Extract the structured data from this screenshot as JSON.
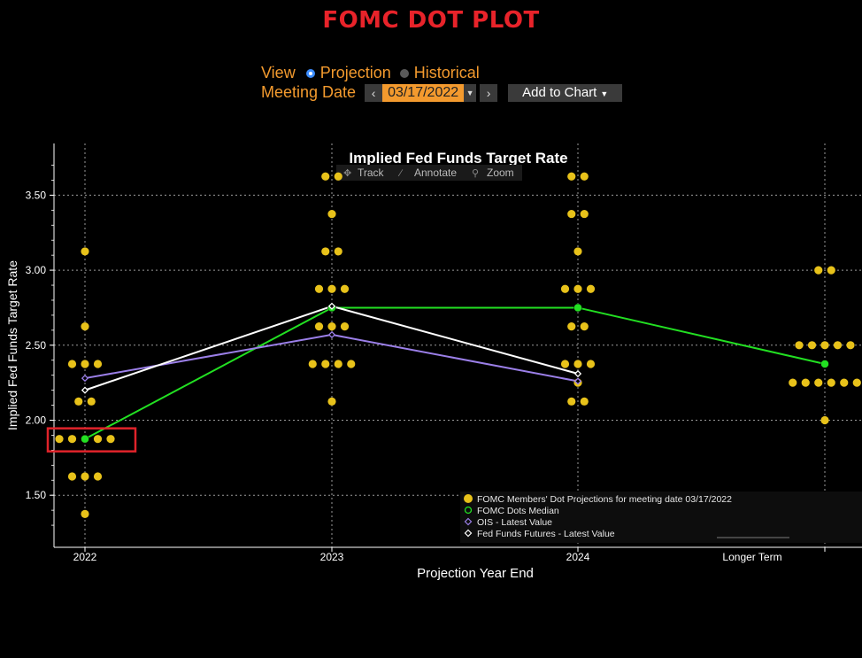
{
  "page_title": "FOMC DOT PLOT",
  "controls": {
    "view_label": "View",
    "view_options": [
      "Projection",
      "Historical"
    ],
    "view_selected": "Projection",
    "meeting_date_label": "Meeting Date",
    "meeting_date_value": "03/17/2022",
    "add_to_chart_label": "Add to Chart"
  },
  "toolbar": {
    "track": "Track",
    "annotate": "Annotate",
    "zoom": "Zoom"
  },
  "colors": {
    "dots": "#e8c21a",
    "median": "#22e022",
    "ois": "#9b7fe8",
    "futures": "#ffffff",
    "highlight": "#e0232a",
    "title": "#e8232a",
    "controls": "#f39a2e"
  },
  "chart_data": {
    "type": "scatter",
    "title": "Implied Fed Funds Target Rate",
    "xlabel": "Projection Year End",
    "ylabel": "Implied Fed Funds Target Rate",
    "categories": [
      "2022",
      "2023",
      "2024",
      "Longer Term"
    ],
    "ylim": [
      1.2,
      3.8
    ],
    "yticks": [
      "1.50",
      "2.00",
      "2.50",
      "3.00",
      "3.50"
    ],
    "grid": true,
    "legend_position": "bottom-right",
    "dot_projections": {
      "name": "FOMC Members' Dot Projections for meeting date 03/17/2022",
      "columns": [
        {
          "category": "2022",
          "levels": [
            {
              "rate": 3.125,
              "count": 1
            },
            {
              "rate": 2.625,
              "count": 1
            },
            {
              "rate": 2.375,
              "count": 3
            },
            {
              "rate": 2.125,
              "count": 2
            },
            {
              "rate": 1.875,
              "count": 5
            },
            {
              "rate": 1.625,
              "count": 3
            },
            {
              "rate": 1.375,
              "count": 1
            }
          ]
        },
        {
          "category": "2023",
          "levels": [
            {
              "rate": 3.625,
              "count": 2
            },
            {
              "rate": 3.375,
              "count": 1
            },
            {
              "rate": 3.125,
              "count": 2
            },
            {
              "rate": 2.875,
              "count": 3
            },
            {
              "rate": 2.625,
              "count": 3
            },
            {
              "rate": 2.375,
              "count": 4
            },
            {
              "rate": 2.125,
              "count": 1
            }
          ]
        },
        {
          "category": "2024",
          "levels": [
            {
              "rate": 3.625,
              "count": 2
            },
            {
              "rate": 3.375,
              "count": 2
            },
            {
              "rate": 3.125,
              "count": 1
            },
            {
              "rate": 2.875,
              "count": 3
            },
            {
              "rate": 2.625,
              "count": 2
            },
            {
              "rate": 2.375,
              "count": 3
            },
            {
              "rate": 2.25,
              "count": 1
            },
            {
              "rate": 2.125,
              "count": 2
            }
          ]
        },
        {
          "category": "Longer Term",
          "levels": [
            {
              "rate": 3.0,
              "count": 2
            },
            {
              "rate": 2.5,
              "count": 5
            },
            {
              "rate": 2.25,
              "count": 6
            },
            {
              "rate": 2.0,
              "count": 1
            }
          ]
        }
      ]
    },
    "series": [
      {
        "name": "FOMC Dots Median",
        "values": [
          1.875,
          2.75,
          2.75,
          2.375
        ]
      },
      {
        "name": "OIS - Latest Value",
        "values": [
          2.28,
          2.57,
          2.26,
          null
        ]
      },
      {
        "name": "Fed Funds Futures - Latest Value",
        "values": [
          2.2,
          2.76,
          2.31,
          null
        ]
      }
    ],
    "highlight": {
      "category": "2022",
      "rate": 1.875
    }
  }
}
